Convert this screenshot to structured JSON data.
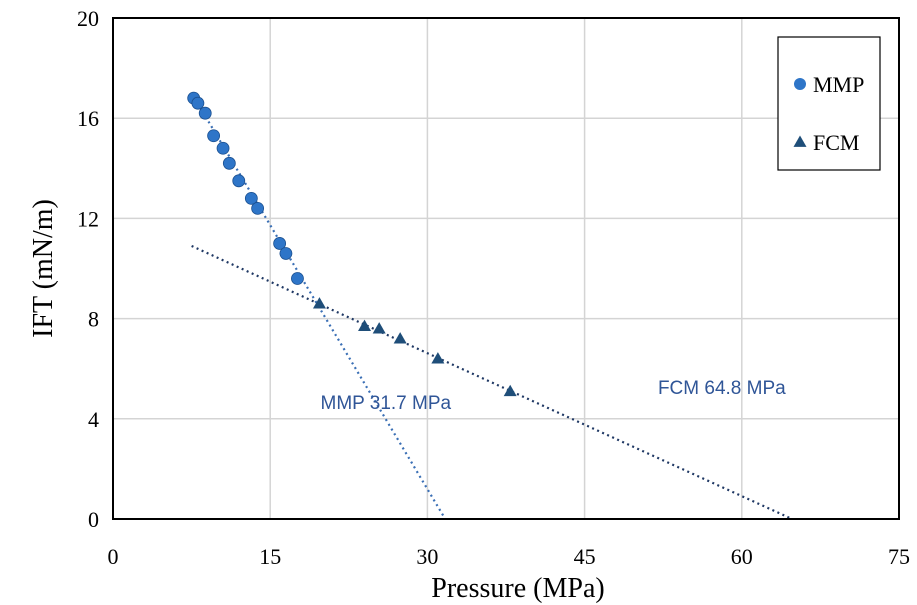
{
  "chart_data": {
    "type": "scatter",
    "title": "",
    "xlabel": "Pressure (MPa)",
    "ylabel": "IFT (mN/m)",
    "xlim": [
      0,
      75
    ],
    "ylim": [
      0,
      20
    ],
    "xticks": [
      "0",
      "15",
      "30",
      "45",
      "60",
      "75"
    ],
    "yticks": [
      "0",
      "4",
      "8",
      "12",
      "16",
      "20"
    ],
    "grid": true,
    "legend": {
      "placement": "top-right",
      "entries": [
        "MMP",
        "FCM"
      ]
    },
    "series": [
      {
        "name": "MMP",
        "marker": "circle",
        "color": "#2E75C8",
        "x": [
          7.7,
          8.1,
          8.8,
          9.6,
          10.5,
          11.1,
          12.0,
          13.2,
          13.8,
          15.9,
          16.5,
          17.6
        ],
        "y": [
          16.8,
          16.6,
          16.2,
          15.3,
          14.8,
          14.2,
          13.5,
          12.8,
          12.4,
          11.0,
          10.6,
          9.6
        ]
      },
      {
        "name": "FCM",
        "marker": "triangle",
        "color": "#1F4E79",
        "x": [
          19.7,
          24.0,
          25.4,
          27.4,
          31.0,
          37.9
        ],
        "y": [
          8.6,
          7.7,
          7.6,
          7.2,
          6.4,
          5.1
        ]
      }
    ],
    "trendlines": [
      {
        "series": "MMP",
        "from": [
          7.5,
          17.0
        ],
        "to": [
          31.7,
          0
        ],
        "color": "#3A6FB5"
      },
      {
        "series": "FCM",
        "from": [
          7.5,
          10.9
        ],
        "to": [
          64.8,
          0
        ],
        "color": "#1F3864"
      }
    ],
    "annotations": [
      {
        "text": "MMP 31.7 MPa",
        "x": 19.8,
        "y": 4.4,
        "color": "#2F5597"
      },
      {
        "text": "FCM 64.8 MPa",
        "x": 52.0,
        "y": 5.0,
        "color": "#2F5597"
      }
    ]
  }
}
